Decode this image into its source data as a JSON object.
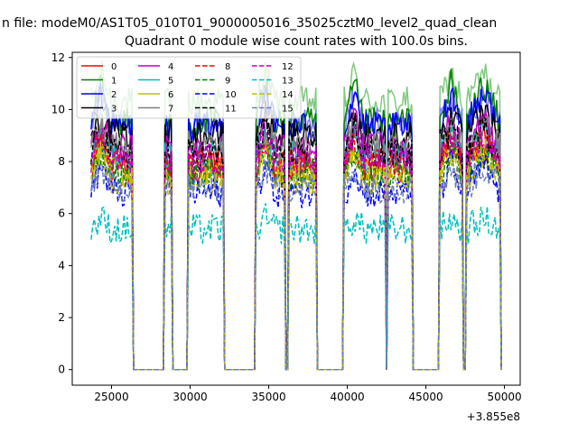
{
  "chart_data": {
    "type": "line",
    "suptitle": "n file: modeM0/AS1T05_010T01_9000005016_35025cztM0_level2_quad_clean",
    "title": "Quadrant 0 module wise count rates with 100.0s bins.",
    "xlabel": "",
    "ylabel": "",
    "x_offset_label": "+3.855e8",
    "xlim": [
      22500,
      51000
    ],
    "ylim": [
      -0.6,
      12.2
    ],
    "x_ticks": [
      25000,
      30000,
      35000,
      40000,
      45000,
      50000
    ],
    "x_tick_labels": [
      "25000",
      "30000",
      "35000",
      "40000",
      "45000",
      "50000"
    ],
    "y_ticks": [
      0,
      2,
      4,
      6,
      8,
      10,
      12
    ],
    "y_tick_labels": [
      "0",
      "2",
      "4",
      "6",
      "8",
      "10",
      "12"
    ],
    "legend_position": "upper-left",
    "legend_columns": 4,
    "bin_size_s": 100,
    "active_intervals": [
      [
        23700,
        26300
      ],
      [
        28400,
        28800
      ],
      [
        29900,
        32100
      ],
      [
        34200,
        36000
      ],
      [
        36300,
        38000
      ],
      [
        39800,
        41100
      ],
      [
        41200,
        42400
      ],
      [
        42600,
        44100
      ],
      [
        45900,
        47300
      ],
      [
        47600,
        49700
      ]
    ],
    "series": [
      {
        "name": "0",
        "color": "#ff0000",
        "dash": "solid",
        "level": 7.8,
        "peak": 9.3
      },
      {
        "name": "1",
        "color": "#008000",
        "dash": "solid",
        "level": 9.5,
        "peak": 11.0
      },
      {
        "name": "2",
        "color": "#0000ff",
        "dash": "solid",
        "level": 9.3,
        "peak": 10.8
      },
      {
        "name": "3",
        "color": "#000000",
        "dash": "solid",
        "level": 9.0,
        "peak": 9.8
      },
      {
        "name": "4",
        "color": "#bf00bf",
        "dash": "solid",
        "level": 8.5,
        "peak": 9.6
      },
      {
        "name": "5",
        "color": "#00bfbf",
        "dash": "solid",
        "level": 8.2,
        "peak": 9.0
      },
      {
        "name": "6",
        "color": "#bfbf00",
        "dash": "solid",
        "level": 7.6,
        "peak": 8.6
      },
      {
        "name": "7",
        "color": "#808080",
        "dash": "solid",
        "level": 8.6,
        "peak": 9.4
      },
      {
        "name": "8",
        "color": "#ff0000",
        "dash": "dashed",
        "level": 7.9,
        "peak": 8.8
      },
      {
        "name": "9",
        "color": "#008000",
        "dash": "dashed",
        "level": 7.5,
        "peak": 8.4
      },
      {
        "name": "10",
        "color": "#0000ff",
        "dash": "dashed",
        "level": 6.8,
        "peak": 7.9
      },
      {
        "name": "11",
        "color": "#000000",
        "dash": "dashed",
        "level": 8.3,
        "peak": 9.3
      },
      {
        "name": "12",
        "color": "#bf00bf",
        "dash": "dashed",
        "level": 8.1,
        "peak": 8.9
      },
      {
        "name": "13",
        "color": "#00bfbf",
        "dash": "dashed",
        "level": 5.4,
        "peak": 5.8
      },
      {
        "name": "14",
        "color": "#bfbf00",
        "dash": "dashed",
        "level": 7.3,
        "peak": 8.3
      },
      {
        "name": "15",
        "color": "#6b7fb5",
        "dash": "dashed",
        "level": 7.0,
        "peak": 7.8
      },
      {
        "name": "",
        "color": "#7fc97f",
        "dash": "solid",
        "level": 10.3,
        "peak": 11.4
      },
      {
        "name": "",
        "color": "#7f7fff",
        "dash": "solid",
        "level": 9.5,
        "peak": 10.5
      }
    ]
  }
}
